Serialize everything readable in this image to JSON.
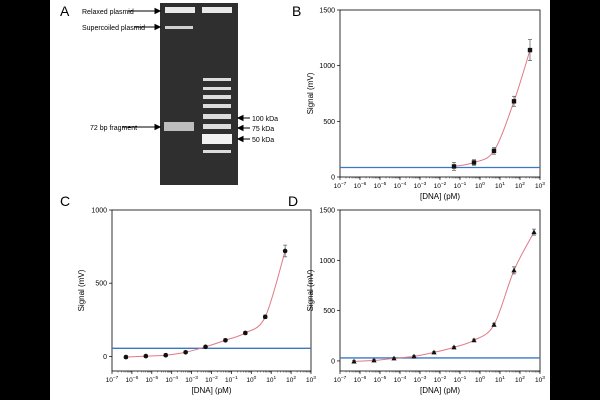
{
  "colors": {
    "panel_bg": "#ffffff",
    "frame": "#000000",
    "curve": "#e07a85",
    "baseline": "#3a78c4",
    "gel_bg": "#2f2f2f",
    "band": "#e9e9e9"
  },
  "gel": {
    "label": "A",
    "annotations_left": [
      "Relaxed plasmid",
      "Supercoiled plasmid",
      "72 bp fragment"
    ],
    "annotations_right": [
      "100 kDa",
      "75 kDa",
      "50 kDa"
    ]
  },
  "chart_data": [
    {
      "label": "B",
      "type": "scatter",
      "xlabel": "[DNA] (pM)",
      "ylabel": "Signal (mV)",
      "x_tick_exponents": [
        -7,
        -6,
        -5,
        -4,
        -3,
        -2,
        -1,
        0,
        1,
        2,
        3
      ],
      "ylim": [
        0,
        1500
      ],
      "yticks": [
        0,
        500,
        1000,
        1500
      ],
      "marker": "square",
      "points": [
        {
          "log10x": -1.3,
          "y": 95,
          "err": 35
        },
        {
          "log10x": -0.3,
          "y": 130,
          "err": 25
        },
        {
          "log10x": 0.7,
          "y": 235,
          "err": 30
        },
        {
          "log10x": 1.7,
          "y": 680,
          "err": 45
        },
        {
          "log10x": 2.5,
          "y": 1140,
          "err": 95
        }
      ],
      "baseline_y": 85,
      "fit_log10x_range": [
        -1.3,
        2.5
      ]
    },
    {
      "label": "C",
      "type": "scatter",
      "xlabel": "[DNA] (pM)",
      "ylabel": "Signal (mV)",
      "x_tick_exponents": [
        -7,
        -6,
        -5,
        -4,
        -3,
        -2,
        -1,
        0,
        1,
        2,
        3
      ],
      "ylim": [
        -100,
        1000
      ],
      "yticks": [
        0,
        500,
        1000
      ],
      "marker": "circle",
      "points": [
        {
          "log10x": -6.3,
          "y": -5,
          "err": 10
        },
        {
          "log10x": -5.3,
          "y": 2,
          "err": 8
        },
        {
          "log10x": -4.3,
          "y": 8,
          "err": 10
        },
        {
          "log10x": -3.3,
          "y": 28,
          "err": 8
        },
        {
          "log10x": -2.3,
          "y": 65,
          "err": 8
        },
        {
          "log10x": -1.3,
          "y": 110,
          "err": 10
        },
        {
          "log10x": -0.3,
          "y": 160,
          "err": 10
        },
        {
          "log10x": 0.7,
          "y": 270,
          "err": 12
        },
        {
          "log10x": 1.7,
          "y": 720,
          "err": 40
        }
      ],
      "baseline_y": 55,
      "fit_log10x_range": [
        -6.3,
        1.7
      ]
    },
    {
      "label": "D",
      "type": "scatter",
      "xlabel": "[DNA] (pM)",
      "ylabel": "Signal (mV)",
      "x_tick_exponents": [
        -7,
        -6,
        -5,
        -4,
        -3,
        -2,
        -1,
        0,
        1,
        2,
        3
      ],
      "ylim": [
        -100,
        1500
      ],
      "yticks": [
        0,
        500,
        1000,
        1500
      ],
      "marker": "triangle",
      "points": [
        {
          "log10x": -6.3,
          "y": -5,
          "err": 8
        },
        {
          "log10x": -5.3,
          "y": 5,
          "err": 8
        },
        {
          "log10x": -4.3,
          "y": 25,
          "err": 8
        },
        {
          "log10x": -3.3,
          "y": 45,
          "err": 8
        },
        {
          "log10x": -2.3,
          "y": 85,
          "err": 8
        },
        {
          "log10x": -1.3,
          "y": 135,
          "err": 10
        },
        {
          "log10x": -0.3,
          "y": 205,
          "err": 12
        },
        {
          "log10x": 0.7,
          "y": 360,
          "err": 15
        },
        {
          "log10x": 1.7,
          "y": 900,
          "err": 35
        },
        {
          "log10x": 2.7,
          "y": 1280,
          "err": 30
        }
      ],
      "baseline_y": 30,
      "fit_log10x_range": [
        -6.3,
        2.7
      ]
    }
  ]
}
